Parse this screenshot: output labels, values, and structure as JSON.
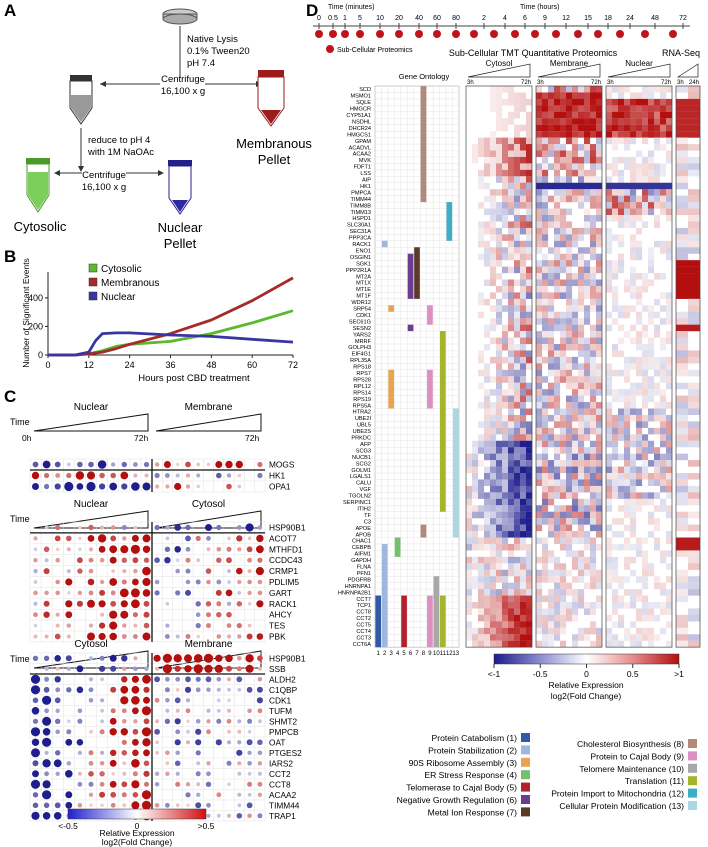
{
  "panels": {
    "A": "A",
    "B": "B",
    "C": "C",
    "D": "D"
  },
  "panelA": {
    "step1": [
      "Native Lysis",
      "0.1% Tween20",
      "pH 7.4"
    ],
    "centrifuge1": [
      "Centrifuge",
      "16,100 x g"
    ],
    "membranous": [
      "Membranous",
      "Pellet"
    ],
    "reduce": [
      "reduce to pH 4",
      "with 1M NaOAc"
    ],
    "centrifuge2": [
      "Centrifuge",
      "16,100 x g"
    ],
    "cytosolic": "Cytosolic",
    "nuclear": [
      "Nuclear",
      "Pellet"
    ]
  },
  "panelB": {
    "chart_data": {
      "type": "line",
      "xlabel": "Hours post CBD treatment",
      "ylabel": "Number of Significant Events",
      "xticks": [
        0,
        12,
        24,
        36,
        48,
        60,
        72
      ],
      "yticks": [
        0,
        200,
        400
      ],
      "xlim": [
        0,
        72
      ],
      "ylim": [
        0,
        560
      ],
      "series": [
        {
          "name": "Cytosolic",
          "color": "#5cb82e",
          "x": [
            0,
            8,
            12,
            16,
            20,
            24,
            36,
            48,
            60,
            72
          ],
          "y": [
            0,
            0,
            8,
            30,
            60,
            75,
            95,
            150,
            225,
            310
          ]
        },
        {
          "name": "Membranous",
          "color": "#a52a2a",
          "x": [
            0,
            8,
            12,
            16,
            20,
            24,
            36,
            48,
            60,
            72
          ],
          "y": [
            0,
            0,
            8,
            20,
            45,
            75,
            150,
            245,
            380,
            540
          ]
        },
        {
          "name": "Nuclear",
          "color": "#3a35a0",
          "x": [
            0,
            8,
            12,
            14,
            16,
            20,
            24,
            36,
            48,
            60,
            72
          ],
          "y": [
            0,
            0,
            20,
            100,
            150,
            155,
            155,
            140,
            130,
            110,
            90
          ]
        }
      ]
    }
  },
  "panelC": {
    "time_label": "Time",
    "blocks": [
      {
        "left": "Nuclear",
        "right": "Membrane",
        "t_start": "0h",
        "t_end": "72h",
        "t_end2": "72h",
        "genes": [
          "MOGS",
          "HK1",
          "OPA1"
        ]
      },
      {
        "left": "Nuclear",
        "right": "Cytosol",
        "genes": [
          "HSP90B1",
          "ACOT7",
          "MTHFD1",
          "CCDC43",
          "CRMP1",
          "PDLIM5",
          "GART",
          "RACK1",
          "AHCY",
          "TES",
          "PBK"
        ]
      },
      {
        "left": "Cytosol",
        "right": "Membrane",
        "genes": [
          "HSP90B1",
          "SSB",
          "ALDH2",
          "C1QBP",
          "CDK1",
          "TUFM",
          "SHMT2",
          "PMPCB",
          "OAT",
          "PTGES2",
          "IARS2",
          "CCT2",
          "CCT8",
          "ACAA2",
          "TIMM44",
          "TRAP1"
        ]
      }
    ],
    "legend": {
      "min": "<-0.5",
      "mid": "0",
      "max": ">0.5",
      "title": "Relative Expression",
      "sub": "log2(Fold Change)"
    }
  },
  "panelD": {
    "time_title": "Time (minutes)",
    "time_title_h": "Time (hours)",
    "minute_ticks": [
      "0",
      "0.5",
      "1",
      "5",
      "10",
      "20",
      "40",
      "60",
      "80"
    ],
    "hour_ticks": [
      "2",
      "4",
      "6",
      "9",
      "12",
      "15",
      "18",
      "24",
      "48",
      "72"
    ],
    "subcell_label": "Sub-Cellular Proteomics",
    "header_main": "Sub-Cellular TMT Quantitative Proteomics",
    "header_rna": "RNA-Seq",
    "go_title": "Gene Ontology",
    "fractions": [
      "Cytosol",
      "Membrane",
      "Nuclear"
    ],
    "t3": "3h",
    "t72": "72h",
    "t24": "24h",
    "go_numbers": [
      "1",
      "2",
      "3",
      "4",
      "5",
      "6",
      "7",
      "8",
      "9",
      "10",
      "11",
      "12",
      "13"
    ],
    "genes": [
      "SCD",
      "MSMO1",
      "SQLE",
      "HMGCR",
      "CYP51A1",
      "NSDHL",
      "DHCR24",
      "HMGCS1",
      "GPAM",
      "ACADVL",
      "ACAA2",
      "MVK",
      "FDFT1",
      "LSS",
      "AIP",
      "HK1",
      "PMPCA",
      "TIMM44",
      "TIMM8B",
      "TIMM13",
      "HSPD1",
      "SLC30A1",
      "SEC31A",
      "PPP3CA",
      "RACK1",
      "ENO1",
      "OSGIN1",
      "SGK1",
      "PPP2R1A",
      "MT2A",
      "MT1X",
      "MT1E",
      "MT1F",
      "WDR12",
      "SRP54",
      "CDK1",
      "SEC61G",
      "SESN2",
      "YARS2",
      "MRRF",
      "GOLPH3",
      "EIF4G1",
      "RPL35A",
      "RPS18",
      "RPS7",
      "RPS28",
      "RPL12",
      "RPS14",
      "RPS19",
      "RPS5A",
      "HTRA2",
      "UBE2I",
      "UBL5",
      "UBE2S",
      "PRKDC",
      "AFP",
      "SCG3",
      "NUCB1",
      "SCG2",
      "GOLM1",
      "LGALS1",
      "CALU",
      "VGF",
      "TGOLN2",
      "SERPINC1",
      "ITIH2",
      "TF",
      "C3",
      "APOE",
      "APOB",
      "CHAC1",
      "CEBPB",
      "AIFM1",
      "GAPDH",
      "FLNA",
      "PFN1",
      "PDGFRB",
      "HNRNPA1",
      "HNRNPA2B1",
      "CCT7",
      "TCP1",
      "CCT8",
      "CCT2",
      "CCT5",
      "CCT4",
      "CCT3",
      "CCT6A"
    ],
    "legend": {
      "ticks": [
        "<-1",
        "-0.5",
        "0",
        "0.5",
        ">1"
      ],
      "title": "Relative Expression",
      "sub": "log2(Fold Change)"
    },
    "go_terms_left": [
      {
        "label": "Protein Catabolism (1)",
        "color": "#2f5aa8"
      },
      {
        "label": "Protein Stabilization (2)",
        "color": "#9fb7dc"
      },
      {
        "label": "90S Ribosome Assembly (3)",
        "color": "#e8a451"
      },
      {
        "label": "ER Stress Response (4)",
        "color": "#74c06c"
      },
      {
        "label": "Telomerase to Cajal Body (5)",
        "color": "#b3222b"
      },
      {
        "label": "Negative Growth Regulation (6)",
        "color": "#6a3d93"
      },
      {
        "label": "Metal Ion Response (7)",
        "color": "#5c3a2a"
      }
    ],
    "go_terms_right": [
      {
        "label": "Cholesterol Biosynthesis (8)",
        "color": "#b08a7a"
      },
      {
        "label": "Protein to Cajal Body (9)",
        "color": "#dc8fc0"
      },
      {
        "label": "Telomere Maintenance (10)",
        "color": "#a8a8a8"
      },
      {
        "label": "Translation (11)",
        "color": "#a4b52a"
      },
      {
        "label": "Protein Import to Mitochondria (12)",
        "color": "#3faec1"
      },
      {
        "label": "Cellular Protein Modification (13)",
        "color": "#a9d7e2"
      }
    ]
  }
}
